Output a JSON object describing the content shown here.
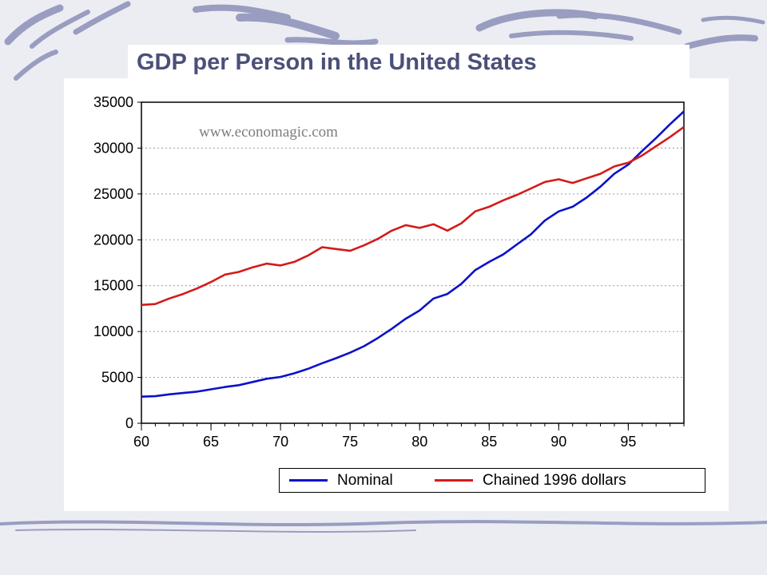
{
  "slide": {
    "title": "GDP per Person in the United States",
    "source_note": "www.economagic.com"
  },
  "colors": {
    "title": "#4b5079",
    "nominal": "#0b12c9",
    "chained": "#d41a1a",
    "decoration": "#8b90b8",
    "background": "#ecedf3"
  },
  "chart_data": {
    "type": "line",
    "title": "",
    "xlabel": "",
    "ylabel": "",
    "xlim": [
      60,
      99
    ],
    "ylim": [
      0,
      35000
    ],
    "grid": true,
    "legend_position": "bottom",
    "x_ticks": [
      "60",
      "65",
      "70",
      "75",
      "80",
      "85",
      "90",
      "95"
    ],
    "y_ticks": [
      "0",
      "5000",
      "10000",
      "15000",
      "20000",
      "25000",
      "30000",
      "35000"
    ],
    "x": [
      60,
      61,
      62,
      63,
      64,
      65,
      66,
      67,
      68,
      69,
      70,
      71,
      72,
      73,
      74,
      75,
      76,
      77,
      78,
      79,
      80,
      81,
      82,
      83,
      84,
      85,
      86,
      87,
      88,
      89,
      90,
      91,
      92,
      93,
      94,
      95,
      96,
      97,
      98,
      99
    ],
    "series": [
      {
        "name": "Nominal",
        "values": [
          2900,
          2950,
          3150,
          3300,
          3450,
          3700,
          3950,
          4150,
          4500,
          4850,
          5050,
          5450,
          5950,
          6550,
          7100,
          7700,
          8400,
          9300,
          10300,
          11400,
          12300,
          13600,
          14100,
          15200,
          16700,
          17600,
          18400,
          19500,
          20600,
          22100,
          23100,
          23600,
          24600,
          25800,
          27200,
          28200,
          29700,
          31100,
          32600,
          34000
        ]
      },
      {
        "name": "Chained 1996 dollars",
        "values": [
          12900,
          13000,
          13600,
          14100,
          14700,
          15400,
          16200,
          16500,
          17000,
          17400,
          17200,
          17600,
          18300,
          19200,
          19000,
          18800,
          19400,
          20100,
          21000,
          21600,
          21300,
          21700,
          21000,
          21800,
          23100,
          23600,
          24300,
          24900,
          25600,
          26300,
          26600,
          26200,
          26700,
          27200,
          28000,
          28400,
          29200,
          30200,
          31200,
          32300
        ]
      }
    ]
  }
}
